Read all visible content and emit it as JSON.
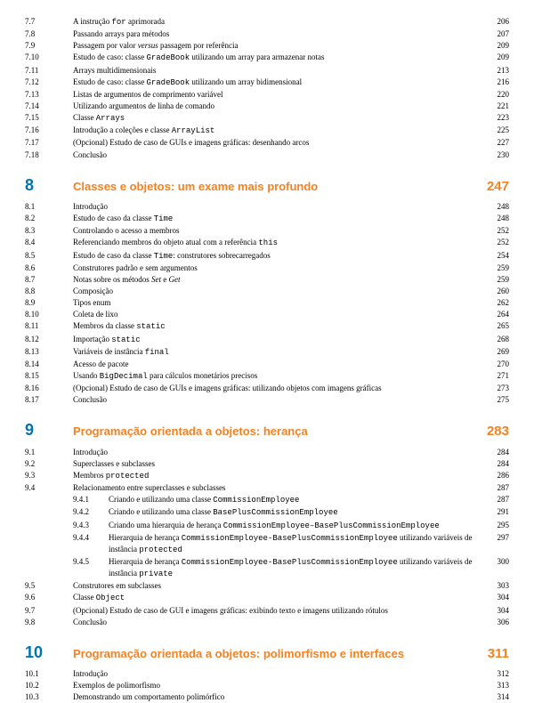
{
  "preSections": [
    {
      "num": "7.7",
      "title": "A instrução <span class='mono'>for</span> aprimorada",
      "page": "206"
    },
    {
      "num": "7.8",
      "title": "Passando arrays para métodos",
      "page": "207"
    },
    {
      "num": "7.9",
      "title": "Passagem por valor <span class='ital'>versus</span> passagem por referência",
      "page": "209"
    },
    {
      "num": "7.10",
      "title": "Estudo de caso: classe <span class='mono'>GradeBook</span> utilizando um array para armazenar notas",
      "page": "209"
    },
    {
      "num": "7.11",
      "title": "Arrays multidimensionais",
      "page": "213"
    },
    {
      "num": "7.12",
      "title": "Estudo de caso: classe <span class='mono'>GradeBook</span> utilizando um array bidimensional",
      "page": "216"
    },
    {
      "num": "7.13",
      "title": "Listas de argumentos de comprimento variável",
      "page": "220"
    },
    {
      "num": "7.14",
      "title": "Utilizando argumentos de linha de comando",
      "page": "221"
    },
    {
      "num": "7.15",
      "title": "Classe <span class='mono'>Arrays</span>",
      "page": "223"
    },
    {
      "num": "7.16",
      "title": "Introdução a coleções e classe <span class='mono'>ArrayList</span>",
      "page": "225"
    },
    {
      "num": "7.17",
      "title": "(Opcional) Estudo de caso de GUIs e imagens gráficas: desenhando arcos",
      "page": "227"
    },
    {
      "num": "7.18",
      "title": "Conclusão",
      "page": "230"
    }
  ],
  "chapters": [
    {
      "num": "8",
      "title": "Classes e objetos: um exame mais profundo",
      "page": "247",
      "sections": [
        {
          "num": "8.1",
          "title": "Introdução",
          "page": "248"
        },
        {
          "num": "8.2",
          "title": "Estudo de caso da classe <span class='mono'>Time</span>",
          "page": "248"
        },
        {
          "num": "8.3",
          "title": "Controlando o acesso a membros",
          "page": "252"
        },
        {
          "num": "8.4",
          "title": "Referenciando membros do objeto atual com a referência <span class='mono'>this</span>",
          "page": "252"
        },
        {
          "num": "8.5",
          "title": "Estudo de caso da classe <span class='mono'>Time</span>: construtores sobrecarregados",
          "page": "254"
        },
        {
          "num": "8.6",
          "title": "Construtores padrão e sem argumentos",
          "page": "259"
        },
        {
          "num": "8.7",
          "title": "Notas sobre os métodos <span class='ital'>Set</span> e <span class='ital'>Get</span>",
          "page": "259"
        },
        {
          "num": "8.8",
          "title": "Composição",
          "page": "260"
        },
        {
          "num": "8.9",
          "title": "Tipos enum",
          "page": "262"
        },
        {
          "num": "8.10",
          "title": "Coleta de lixo",
          "page": "264"
        },
        {
          "num": "8.11",
          "title": "Membros da classe <span class='mono'>static</span>",
          "page": "265"
        },
        {
          "num": "8.12",
          "title": "Importação <span class='mono'>static</span>",
          "page": "268"
        },
        {
          "num": "8.13",
          "title": "Variáveis de instância <span class='mono'>final</span>",
          "page": "269"
        },
        {
          "num": "8.14",
          "title": "Acesso de pacote",
          "page": "270"
        },
        {
          "num": "8.15",
          "title": "Usando <span class='mono'>BigDecimal</span> para cálculos monetários precisos",
          "page": "271"
        },
        {
          "num": "8.16",
          "title": "(Opcional) Estudo de caso de GUIs e imagens gráficas: utilizando objetos com imagens gráficas",
          "page": "273"
        },
        {
          "num": "8.17",
          "title": "Conclusão",
          "page": "275"
        }
      ]
    },
    {
      "num": "9",
      "title": "Programação orientada a objetos: herança",
      "page": "283",
      "sections": [
        {
          "num": "9.1",
          "title": "Introdução",
          "page": "284"
        },
        {
          "num": "9.2",
          "title": "Superclasses e subclasses",
          "page": "284"
        },
        {
          "num": "9.3",
          "title": "Membros <span class='mono'>protected</span>",
          "page": "286"
        },
        {
          "num": "9.4",
          "title": "Relacionamento entre superclasses e subclasses",
          "page": "287",
          "subs": [
            {
              "subnum": "9.4.1",
              "subtitle": "Criando e utilizando uma classe <span class='mono'>CommissionEmployee</span>",
              "page": "287"
            },
            {
              "subnum": "9.4.2",
              "subtitle": "Criando e utilizando uma classe <span class='mono'>BasePlusCommissionEmployee</span>",
              "page": "291"
            },
            {
              "subnum": "9.4.3",
              "subtitle": "Criando uma hierarquia de herança <span class='mono'>CommissionEmployee–BasePlusCommissionEmployee</span>",
              "page": "295"
            },
            {
              "subnum": "9.4.4",
              "subtitle": "Hierarquia de herança <span class='mono'>CommissionEmployee-BasePlusCommissionEmployee</span> utilizando variáveis de instância <span class='mono'>protected</span>",
              "page": "297"
            },
            {
              "subnum": "9.4.5",
              "subtitle": "Hierarquia de herança <span class='mono'>CommissionEmployee-BasePlusCommissionEmployee</span> utilizando variáveis de instância <span class='mono'>private</span>",
              "page": "300"
            }
          ]
        },
        {
          "num": "9.5",
          "title": "Construtores em subclasses",
          "page": "303"
        },
        {
          "num": "9.6",
          "title": "Classe <span class='mono'>Object</span>",
          "page": "304"
        },
        {
          "num": "9.7",
          "title": "(Opcional) Estudo de caso de GUI e imagens gráficas: exibindo texto e imagens utilizando rótulos",
          "page": "304"
        },
        {
          "num": "9.8",
          "title": "Conclusão",
          "page": "306"
        }
      ]
    },
    {
      "num": "10",
      "title": "Programação orientada a objetos: polimorfismo e interfaces",
      "page": "311",
      "sections": [
        {
          "num": "10.1",
          "title": "Introdução",
          "page": "312"
        },
        {
          "num": "10.2",
          "title": "Exemplos de polimorfismo",
          "page": "313"
        },
        {
          "num": "10.3",
          "title": "Demonstrando um comportamento polimórfico",
          "page": "314"
        }
      ]
    }
  ]
}
